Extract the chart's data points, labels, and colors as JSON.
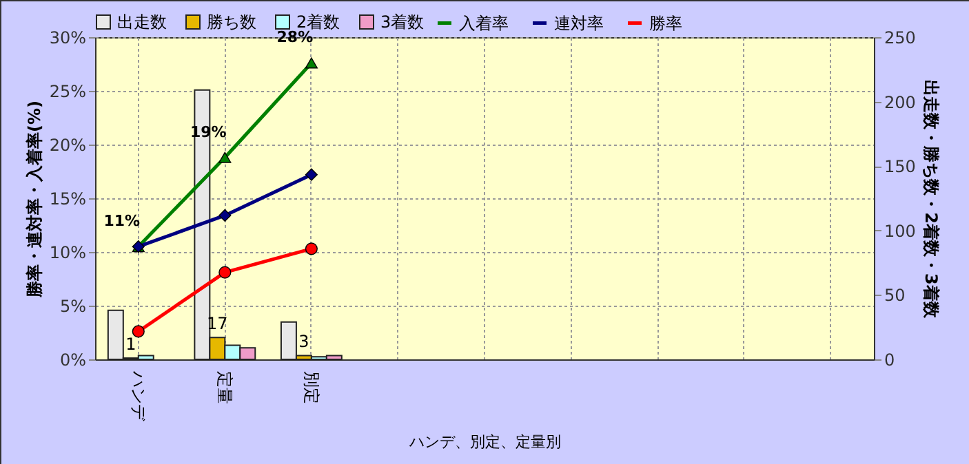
{
  "chart_data": {
    "type": "bar",
    "categories": [
      "ハンデ",
      "定量",
      "別定",
      null,
      null,
      null,
      null,
      null,
      null
    ],
    "xlabel": "ハンデ、別定、定量別",
    "ylabel": "勝率・連対率・入着率(%)",
    "y2label": "出走数・勝ち数・2着数・3着数",
    "series": [
      {
        "name": "出走数",
        "axis": "y2",
        "color": "#e8e8e8",
        "values": [
          38,
          209,
          29,
          null,
          null,
          null,
          null,
          null,
          null
        ]
      },
      {
        "name": "勝ち数",
        "axis": "y2",
        "color": "#e6b800",
        "values": [
          1,
          17,
          3,
          null,
          null,
          null,
          null,
          null,
          null
        ],
        "value_labels": [
          "1",
          "17",
          "3",
          null,
          null,
          null,
          null,
          null,
          null
        ]
      },
      {
        "name": "2着数",
        "axis": "y2",
        "color": "#b3ffff",
        "values": [
          3,
          11,
          2,
          null,
          null,
          null,
          null,
          null,
          null
        ]
      },
      {
        "name": "3着数",
        "axis": "y2",
        "color": "#f09cc8",
        "values": [
          0,
          9,
          3,
          null,
          null,
          null,
          null,
          null,
          null
        ]
      },
      {
        "name": "入着率",
        "type": "line",
        "color": "#008000",
        "marker": "triangle",
        "values": [
          10.5,
          18.8,
          27.6,
          null,
          null,
          null,
          null,
          null,
          null
        ],
        "value_labels": [
          "11%",
          "19%",
          "28%",
          null,
          null,
          null,
          null,
          null,
          null
        ]
      },
      {
        "name": "連対率",
        "type": "line",
        "color": "#000080",
        "marker": "diamond",
        "values": [
          10.5,
          13.4,
          17.2,
          null,
          null,
          null,
          null,
          null,
          null
        ]
      },
      {
        "name": "勝率",
        "type": "line",
        "color": "#ff0000",
        "marker": "circle",
        "values": [
          2.6,
          8.1,
          10.3,
          null,
          null,
          null,
          null,
          null,
          null
        ]
      }
    ],
    "ylim": [
      0,
      30
    ],
    "yticks": [
      {
        "value": 0,
        "label": "0%"
      },
      {
        "value": 5,
        "label": "5%"
      },
      {
        "value": 10,
        "label": "10%"
      },
      {
        "value": 15,
        "label": "15%"
      },
      {
        "value": 20,
        "label": "20%"
      },
      {
        "value": 25,
        "label": "25%"
      },
      {
        "value": 30,
        "label": "30%"
      }
    ],
    "y2lim": [
      0,
      250
    ],
    "y2ticks": [
      0,
      50,
      100,
      150,
      200,
      250
    ],
    "grid": true,
    "legend": "top"
  }
}
